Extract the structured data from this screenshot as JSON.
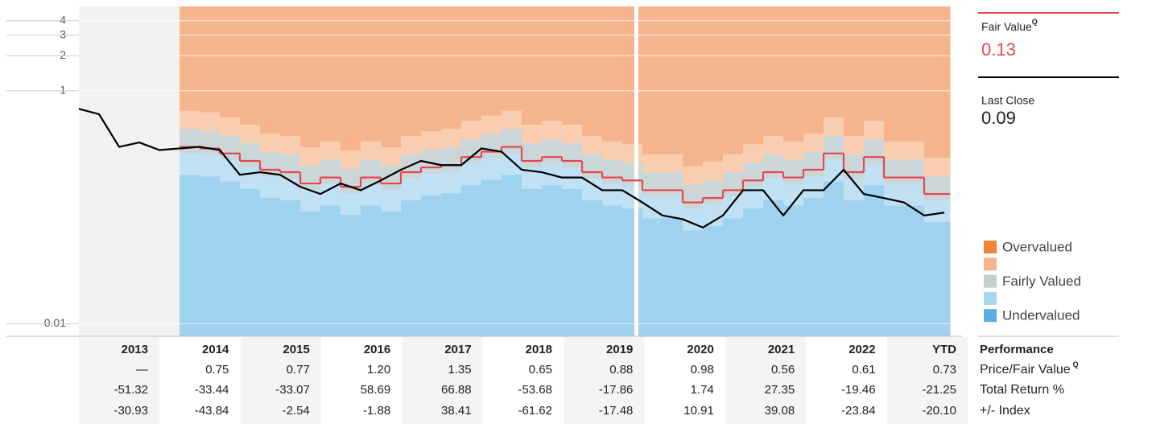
{
  "chart_data": {
    "type": "line",
    "x": [
      2013.0,
      2013.25,
      2013.5,
      2013.75,
      2014.0,
      2014.25,
      2014.5,
      2014.75,
      2015.0,
      2015.25,
      2015.5,
      2015.75,
      2016.0,
      2016.25,
      2016.5,
      2016.75,
      2017.0,
      2017.25,
      2017.5,
      2017.75,
      2018.0,
      2018.25,
      2018.5,
      2018.75,
      2019.0,
      2019.25,
      2019.5,
      2019.75,
      2020.0,
      2020.25,
      2020.5,
      2020.75,
      2021.0,
      2021.25,
      2021.5,
      2021.75,
      2022.0,
      2022.25,
      2022.5,
      2022.75,
      2023.0,
      2023.25,
      2023.5,
      2023.75
    ],
    "series": [
      {
        "name": "Fair Value",
        "color": "#e5474f",
        "last_value": 0.13,
        "step": true,
        "values": [
          null,
          null,
          null,
          null,
          null,
          0.33,
          0.32,
          0.29,
          0.25,
          0.21,
          0.2,
          0.16,
          0.18,
          0.15,
          0.18,
          0.16,
          0.2,
          0.22,
          0.23,
          0.27,
          0.3,
          0.33,
          0.25,
          0.27,
          0.25,
          0.2,
          0.18,
          0.17,
          0.14,
          0.14,
          0.11,
          0.12,
          0.14,
          0.17,
          0.2,
          0.18,
          0.21,
          0.29,
          0.2,
          0.27,
          0.18,
          0.18,
          0.13,
          0.13
        ]
      },
      {
        "name": "Last Close",
        "color": "#000000",
        "last_value": 0.09,
        "values": [
          0.7,
          0.63,
          0.33,
          0.36,
          0.31,
          0.32,
          0.33,
          0.31,
          0.19,
          0.2,
          0.19,
          0.15,
          0.13,
          0.16,
          0.14,
          0.17,
          0.21,
          0.25,
          0.23,
          0.23,
          0.32,
          0.3,
          0.21,
          0.2,
          0.18,
          0.18,
          0.14,
          0.14,
          0.11,
          0.085,
          0.079,
          0.067,
          0.085,
          0.14,
          0.14,
          0.085,
          0.14,
          0.14,
          0.21,
          0.13,
          0.12,
          0.11,
          0.085,
          0.09
        ]
      }
    ],
    "superscript": "Q",
    "xlim": [
      2012.1,
      2023.82
    ],
    "ylim": [
      0.0078,
      5.3
    ],
    "yticks": [
      4,
      3,
      2,
      1,
      0.01
    ],
    "log_scale": true,
    "grid": true,
    "band_colors": [
      "#f5b48c",
      "#f8cdb0",
      "#cbd6d9",
      "#c0e0f3",
      "#9ed2ef"
    ],
    "legend": [
      {
        "label": "Overvalued",
        "color": "#f0843c"
      },
      {
        "color": "#f5b48c"
      },
      {
        "label": "Fairly Valued",
        "color": "#c4cfd2"
      },
      {
        "color": "#a9d6f0"
      },
      {
        "label": "Undervalued",
        "color": "#5aafe0"
      }
    ]
  },
  "table": {
    "columns": [
      "2013",
      "2014",
      "2015",
      "2016",
      "2017",
      "2018",
      "2019",
      "2020",
      "2021",
      "2022",
      "YTD"
    ],
    "header_label": "Performance",
    "rows": [
      {
        "label": "Price/Fair Value",
        "superscript": "Q",
        "cells": [
          "—",
          "0.75",
          "0.77",
          "1.20",
          "1.35",
          "0.65",
          "0.88",
          "0.98",
          "0.56",
          "0.61",
          "0.73"
        ]
      },
      {
        "label": "Total Return %",
        "cells": [
          "-51.32",
          "-33.44",
          "-33.07",
          "58.69",
          "66.88",
          "-53.68",
          "-17.86",
          "1.74",
          "27.35",
          "-19.46",
          "-21.25"
        ]
      },
      {
        "label": "+/- Index",
        "cells": [
          "-30.93",
          "-43.84",
          "-2.54",
          "-1.88",
          "38.41",
          "-61.62",
          "-17.48",
          "10.91",
          "39.08",
          "-23.84",
          "-20.10"
        ]
      }
    ]
  }
}
